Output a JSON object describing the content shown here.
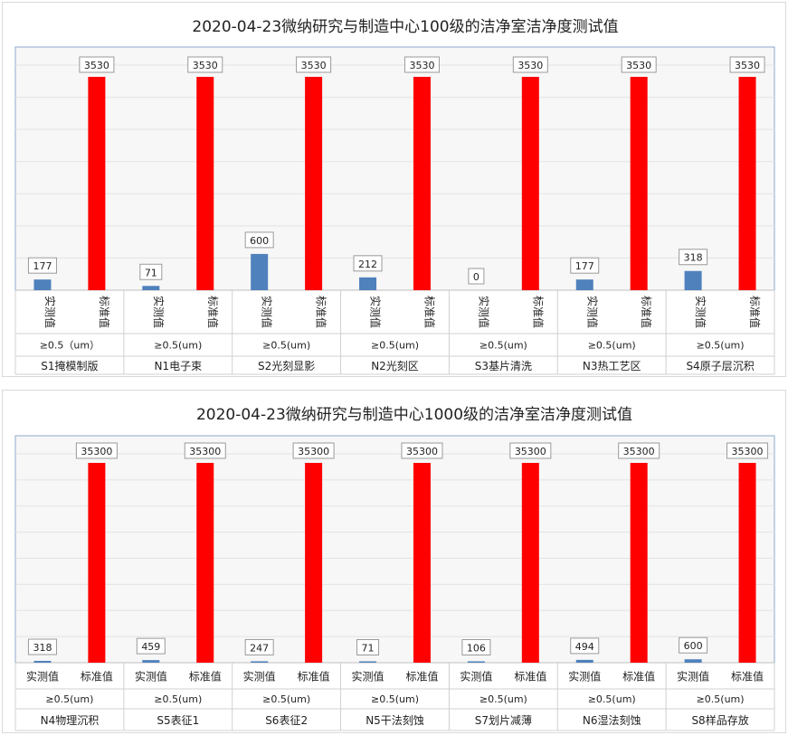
{
  "chart_data": [
    {
      "type": "bar",
      "title": "2020-04-23微纳研究与制造中心100级的洁净室洁净度测试值",
      "series_labels": [
        "实测值",
        "标准值"
      ],
      "groups": [
        {
          "name": "S1掩模制版",
          "particle": "≥0.5（um）",
          "measured": 177,
          "standard": 3530
        },
        {
          "name": "N1电子束",
          "particle": "≥0.5(um)",
          "measured": 71,
          "standard": 3530
        },
        {
          "name": "S2光刻显影",
          "particle": "≥0.5(um)",
          "measured": 600,
          "standard": 3530
        },
        {
          "name": "N2光刻区",
          "particle": "≥0.5(um)",
          "measured": 212,
          "standard": 3530
        },
        {
          "name": "S3基片清洗",
          "particle": "≥0.5(um)",
          "measured": 0,
          "standard": 3530
        },
        {
          "name": "N3热工艺区",
          "particle": "≥0.5(um)",
          "measured": 177,
          "standard": 3530
        },
        {
          "name": "S4原子层沉积",
          "particle": "≥0.5(um)",
          "measured": 318,
          "standard": 3530
        }
      ],
      "ylim": [
        0,
        3530
      ],
      "vertical_series_labels": true,
      "colors": {
        "measured": "#4f81bd",
        "standard": "#ff0000"
      }
    },
    {
      "type": "bar",
      "title": "2020-04-23微纳研究与制造中心1000级的洁净室洁净度测试值",
      "series_labels": [
        "实测值",
        "标准值"
      ],
      "groups": [
        {
          "name": "N4物理沉积",
          "particle": "≥0.5(um)",
          "measured": 318,
          "standard": 35300
        },
        {
          "name": "S5表征1",
          "particle": "≥0.5(um)",
          "measured": 459,
          "standard": 35300
        },
        {
          "name": "S6表征2",
          "particle": "≥0.5(um)",
          "measured": 247,
          "standard": 35300
        },
        {
          "name": "N5干法刻蚀",
          "particle": "≥0.5(um)",
          "measured": 71,
          "standard": 35300
        },
        {
          "name": "S7划片减薄",
          "particle": "≥0.5(um)",
          "measured": 106,
          "standard": 35300
        },
        {
          "name": "N6湿法刻蚀",
          "particle": "≥0.5(um)",
          "measured": 494,
          "standard": 35300
        },
        {
          "name": "S8样品存放",
          "particle": "≥0.5(um)",
          "measured": 600,
          "standard": 35300
        }
      ],
      "ylim": [
        0,
        35300
      ],
      "vertical_series_labels": false,
      "colors": {
        "measured": "#4f81bd",
        "standard": "#ff0000"
      }
    }
  ]
}
